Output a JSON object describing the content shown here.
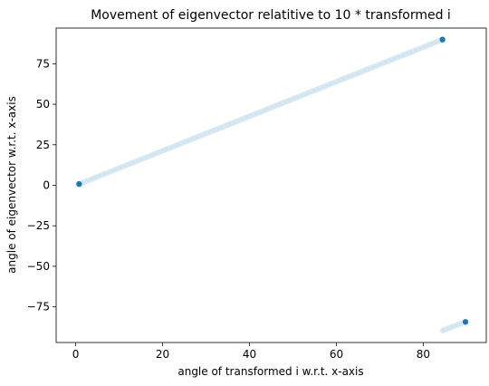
{
  "chart_data": {
    "type": "scatter",
    "title": "Movement of eigenvector relatitive to 10 * transformed i",
    "xlabel": "angle of transformed i w.r.t. x-axis",
    "ylabel": "angle of eigenvector w.r.t. x-axis",
    "xlim": [
      -4.5,
      94.5
    ],
    "ylim": [
      -97,
      97
    ],
    "xticks": [
      0,
      20,
      40,
      60,
      80
    ],
    "yticks": [
      -75,
      -50,
      -25,
      0,
      25,
      50,
      75
    ],
    "grid": false,
    "series": [
      {
        "role": "trail",
        "color": "#d6e8f2",
        "segments": [
          {
            "x": [
              0.5,
              84.3
            ],
            "y": [
              0.5,
              89.8
            ]
          },
          {
            "x": [
              84.5,
              89.6
            ],
            "y": [
              -89.6,
              -84.4
            ]
          }
        ]
      },
      {
        "role": "endpoints",
        "color": "#1f77b4",
        "points": [
          {
            "x": 0.8,
            "y": 0.8
          },
          {
            "x": 84.4,
            "y": 89.9
          },
          {
            "x": 89.7,
            "y": -84.3
          }
        ]
      }
    ]
  }
}
